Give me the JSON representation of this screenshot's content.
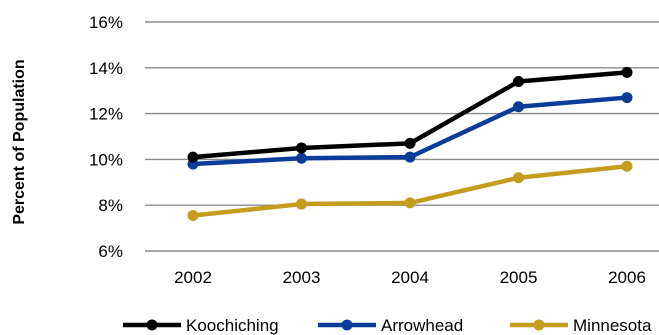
{
  "chart_data": {
    "type": "line",
    "x": [
      "2002",
      "2003",
      "2004",
      "2005",
      "2006"
    ],
    "series": [
      {
        "name": "Koochiching",
        "color": "#000000",
        "values": [
          10.1,
          10.5,
          10.7,
          13.4,
          13.8
        ]
      },
      {
        "name": "Arrowhead",
        "color": "#0a3d9a",
        "values": [
          9.8,
          10.05,
          10.1,
          12.3,
          12.7
        ]
      },
      {
        "name": "Minnesota",
        "color": "#c69c1e",
        "values": [
          7.55,
          8.05,
          8.1,
          9.2,
          9.7
        ]
      }
    ],
    "ylabel": "Percent of Population",
    "xlabel": "",
    "ylim": [
      6,
      16
    ],
    "yticks": [
      6,
      8,
      10,
      12,
      14,
      16
    ],
    "ytick_labels": [
      "6%",
      "8%",
      "10%",
      "12%",
      "14%",
      "16%"
    ],
    "grid": true,
    "legend_position": "bottom"
  }
}
